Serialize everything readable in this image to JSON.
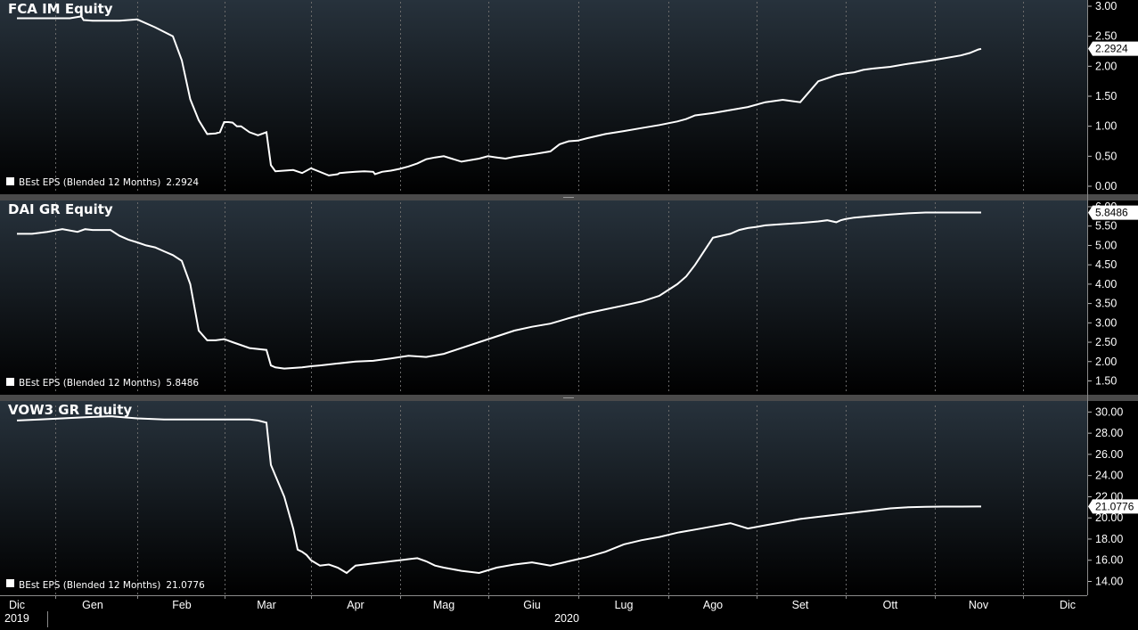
{
  "chart_data": [
    {
      "type": "line",
      "title": "FCA IM Equity",
      "legend": "BEst EPS (Blended 12 Months)",
      "last_value": "2.2924",
      "y_ticks": [
        "0.00",
        "0.50",
        "1.00",
        "1.50",
        "2.00",
        "2.50",
        "3.00"
      ],
      "ylim": [
        0.0,
        3.0
      ],
      "grid": true,
      "series": [
        {
          "x": [
            0.0,
            0.1,
            0.3,
            0.5,
            0.7,
            0.85,
            0.88,
            1.0,
            1.3,
            1.5,
            1.7,
            1.9,
            2.0,
            2.1,
            2.2,
            2.3,
            2.4,
            2.45,
            2.5,
            2.55,
            2.6,
            2.65,
            2.7,
            2.8,
            2.9,
            3.0,
            3.05,
            3.1,
            3.3,
            3.4,
            3.5,
            3.7,
            3.8,
            3.82,
            3.9,
            4.0,
            4.1,
            4.2,
            4.22,
            4.3,
            4.4,
            4.5,
            4.6,
            4.7,
            4.8,
            4.9,
            5.0,
            5.2,
            5.4,
            5.5,
            5.6,
            5.7,
            5.8,
            6.0,
            6.2,
            6.3,
            6.4,
            6.5,
            6.6,
            6.8,
            7.0,
            7.2,
            7.4,
            7.5,
            7.6,
            7.7,
            7.8,
            8.0,
            8.2,
            8.4,
            8.6,
            8.8,
            9.0,
            9.2,
            9.4,
            9.5,
            9.6,
            9.7,
            9.8,
            10.0,
            10.2,
            10.4,
            10.6,
            10.8,
            10.9,
            11.0,
            11.03
          ],
          "y": [
            2.8,
            2.8,
            2.8,
            2.8,
            2.8,
            2.83,
            2.77,
            2.76,
            2.76,
            2.78,
            2.65,
            2.5,
            2.1,
            1.45,
            1.1,
            0.87,
            0.88,
            0.9,
            1.07,
            1.07,
            1.06,
            1.0,
            1.0,
            0.9,
            0.85,
            0.9,
            0.35,
            0.25,
            0.27,
            0.22,
            0.3,
            0.18,
            0.2,
            0.22,
            0.23,
            0.24,
            0.25,
            0.24,
            0.2,
            0.24,
            0.26,
            0.29,
            0.33,
            0.38,
            0.45,
            0.48,
            0.5,
            0.41,
            0.46,
            0.5,
            0.48,
            0.46,
            0.49,
            0.53,
            0.58,
            0.7,
            0.75,
            0.76,
            0.8,
            0.87,
            0.92,
            0.97,
            1.02,
            1.05,
            1.08,
            1.12,
            1.18,
            1.22,
            1.27,
            1.32,
            1.4,
            1.44,
            1.4,
            1.75,
            1.85,
            1.88,
            1.9,
            1.94,
            1.96,
            1.99,
            2.04,
            2.08,
            2.13,
            2.18,
            2.22,
            2.28,
            2.29
          ]
        }
      ]
    },
    {
      "type": "line",
      "title": "DAI GR Equity",
      "legend": "BEst EPS (Blended 12 Months)",
      "last_value": "5.8486",
      "y_ticks": [
        "1.50",
        "2.00",
        "2.50",
        "3.00",
        "3.50",
        "4.00",
        "4.50",
        "5.00",
        "5.50",
        "6.00"
      ],
      "ylim": [
        1.35,
        6.0
      ],
      "grid": true,
      "series": [
        {
          "x": [
            0.0,
            0.2,
            0.4,
            0.6,
            0.8,
            0.9,
            1.0,
            1.2,
            1.3,
            1.4,
            1.5,
            1.6,
            1.7,
            1.8,
            1.9,
            2.0,
            2.1,
            2.2,
            2.3,
            2.4,
            2.5,
            2.6,
            2.8,
            3.0,
            3.05,
            3.1,
            3.2,
            3.4,
            3.5,
            3.6,
            3.8,
            4.0,
            4.2,
            4.4,
            4.6,
            4.8,
            5.0,
            5.2,
            5.4,
            5.6,
            5.8,
            6.0,
            6.2,
            6.3,
            6.4,
            6.6,
            6.8,
            7.0,
            7.2,
            7.4,
            7.5,
            7.6,
            7.7,
            7.8,
            8.0,
            8.2,
            8.3,
            8.4,
            8.5,
            8.6,
            8.8,
            9.0,
            9.2,
            9.3,
            9.4,
            9.45,
            9.5,
            9.6,
            9.8,
            10.0,
            10.2,
            10.4,
            10.6,
            10.8,
            11.0,
            11.03
          ],
          "y": [
            5.3,
            5.3,
            5.35,
            5.42,
            5.35,
            5.42,
            5.4,
            5.4,
            5.25,
            5.15,
            5.08,
            5.0,
            4.95,
            4.85,
            4.75,
            4.6,
            4.0,
            2.8,
            2.55,
            2.55,
            2.58,
            2.5,
            2.35,
            2.3,
            1.9,
            1.85,
            1.82,
            1.85,
            1.88,
            1.9,
            1.95,
            2.0,
            2.02,
            2.08,
            2.15,
            2.12,
            2.2,
            2.35,
            2.5,
            2.65,
            2.8,
            2.9,
            2.98,
            3.05,
            3.12,
            3.25,
            3.35,
            3.45,
            3.55,
            3.7,
            3.85,
            4.0,
            4.2,
            4.5,
            5.2,
            5.3,
            5.4,
            5.45,
            5.48,
            5.52,
            5.55,
            5.58,
            5.62,
            5.65,
            5.6,
            5.65,
            5.68,
            5.72,
            5.76,
            5.8,
            5.83,
            5.85,
            5.85,
            5.85,
            5.85,
            5.85
          ]
        }
      ]
    },
    {
      "type": "line",
      "title": "VOW3 GR Equity",
      "legend": "BEst EPS (Blended 12 Months)",
      "last_value": "21.0776",
      "y_ticks": [
        "14.00",
        "16.00",
        "18.00",
        "20.00",
        "22.00",
        "24.00",
        "26.00",
        "28.00",
        "30.00"
      ],
      "ylim": [
        13.2,
        30.2
      ],
      "grid": true,
      "series": [
        {
          "x": [
            0.0,
            0.3,
            0.6,
            0.9,
            1.2,
            1.5,
            1.8,
            2.1,
            2.4,
            2.6,
            2.8,
            2.9,
            3.0,
            3.05,
            3.1,
            3.2,
            3.3,
            3.35,
            3.4,
            3.45,
            3.5,
            3.6,
            3.7,
            3.8,
            3.9,
            4.0,
            4.1,
            4.2,
            4.3,
            4.4,
            4.5,
            4.6,
            4.7,
            4.8,
            4.9,
            5.0,
            5.2,
            5.4,
            5.6,
            5.8,
            6.0,
            6.2,
            6.4,
            6.5,
            6.6,
            6.8,
            7.0,
            7.2,
            7.4,
            7.6,
            7.8,
            8.0,
            8.2,
            8.4,
            8.6,
            8.8,
            9.0,
            9.2,
            9.4,
            9.6,
            9.8,
            10.0,
            10.2,
            10.4,
            10.6,
            10.8,
            11.0,
            11.03
          ],
          "y": [
            29.2,
            29.3,
            29.4,
            29.5,
            29.6,
            29.4,
            29.3,
            29.3,
            29.3,
            29.3,
            29.3,
            29.2,
            29.0,
            25.0,
            24.0,
            22.0,
            19.0,
            17.0,
            16.8,
            16.5,
            16.0,
            15.5,
            15.6,
            15.3,
            14.8,
            15.5,
            15.6,
            15.7,
            15.8,
            15.9,
            16.0,
            16.1,
            16.2,
            15.9,
            15.5,
            15.3,
            15.0,
            14.8,
            15.3,
            15.6,
            15.8,
            15.5,
            15.9,
            16.1,
            16.3,
            16.8,
            17.5,
            17.9,
            18.2,
            18.6,
            18.9,
            19.2,
            19.5,
            19.0,
            19.3,
            19.6,
            19.9,
            20.1,
            20.3,
            20.5,
            20.7,
            20.9,
            21.0,
            21.05,
            21.07,
            21.07,
            21.08,
            21.08
          ]
        }
      ]
    }
  ],
  "x_axis": {
    "months": [
      "Dic",
      "Gen",
      "Feb",
      "Mar",
      "Apr",
      "Mag",
      "Giu",
      "Lug",
      "Ago",
      "Set",
      "Ott",
      "Nov",
      "Dic"
    ],
    "start_year": "2019",
    "mid_year": "2020"
  },
  "colors": {
    "background_top": "#27323c",
    "background_bottom": "#000000",
    "line": "#ffffff",
    "grid": "#6a6a6a",
    "separator": "#5a5a5a"
  }
}
